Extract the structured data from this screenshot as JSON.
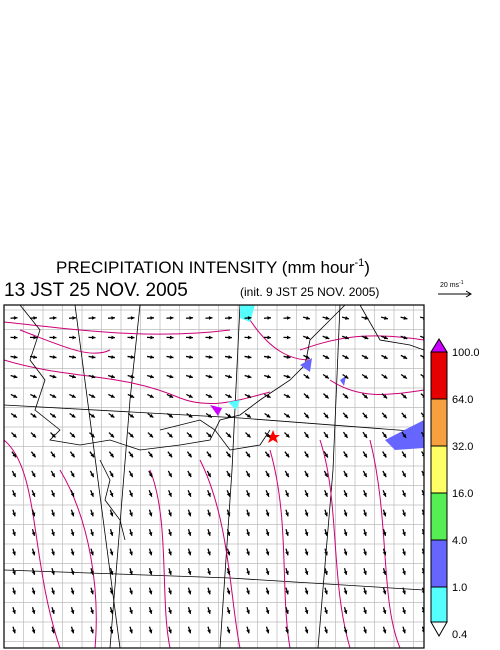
{
  "title": {
    "text": "PRECIPITATION INTENSITY (mm hour",
    "superscript": "-1",
    "close": ")"
  },
  "subtitle": {
    "valid_time": "13 JST 25 NOV. 2005",
    "init": "(init. 9 JST 25 NOV. 2005)"
  },
  "reference_vector": {
    "label": "20 ms",
    "superscript": "-1"
  },
  "colorbar": {
    "labels": [
      "100.0",
      "64.0",
      "32.0",
      "16.0",
      "4.0",
      "1.0",
      "0.4"
    ],
    "colors": [
      "#e60000",
      "#f7a040",
      "#ffff66",
      "#55ee55",
      "#6666ff",
      "#55ffff"
    ],
    "over_color": "#cc00ff",
    "under_color": "#ffffff"
  }
}
